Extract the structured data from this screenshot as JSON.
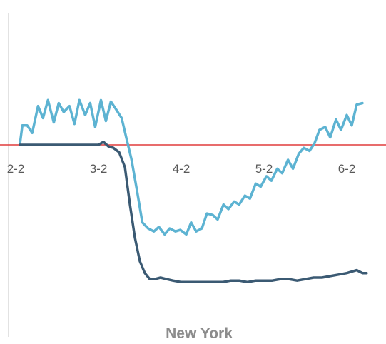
{
  "chart_data": {
    "type": "line",
    "title": "New York",
    "xlabel": "",
    "ylabel": "",
    "x_tick_labels": [
      "2-2",
      "3-2",
      "4-2",
      "5-2",
      "6-2"
    ],
    "xlim": [
      0,
      4.35
    ],
    "ylim": [
      -1.1,
      0.75
    ],
    "baseline": 0,
    "baseline_color": "#e03c3c",
    "axis_color": "#d9d9d9",
    "grid": false,
    "legend": "none",
    "series": [
      {
        "color": "#5db3d2",
        "points": [
          [
            0.05,
            0.0
          ],
          [
            0.08,
            0.13
          ],
          [
            0.14,
            0.13
          ],
          [
            0.2,
            0.08
          ],
          [
            0.27,
            0.26
          ],
          [
            0.33,
            0.18
          ],
          [
            0.39,
            0.3
          ],
          [
            0.46,
            0.15
          ],
          [
            0.52,
            0.28
          ],
          [
            0.58,
            0.22
          ],
          [
            0.65,
            0.26
          ],
          [
            0.71,
            0.14
          ],
          [
            0.77,
            0.3
          ],
          [
            0.84,
            0.2
          ],
          [
            0.9,
            0.28
          ],
          [
            0.96,
            0.12
          ],
          [
            1.03,
            0.3
          ],
          [
            1.09,
            0.16
          ],
          [
            1.15,
            0.29
          ],
          [
            1.21,
            0.24
          ],
          [
            1.28,
            0.18
          ],
          [
            1.34,
            0.04
          ],
          [
            1.4,
            -0.1
          ],
          [
            1.47,
            -0.32
          ],
          [
            1.53,
            -0.52
          ],
          [
            1.6,
            -0.56
          ],
          [
            1.67,
            -0.58
          ],
          [
            1.73,
            -0.55
          ],
          [
            1.8,
            -0.6
          ],
          [
            1.86,
            -0.56
          ],
          [
            1.93,
            -0.58
          ],
          [
            1.99,
            -0.57
          ],
          [
            2.06,
            -0.6
          ],
          [
            2.12,
            -0.52
          ],
          [
            2.18,
            -0.58
          ],
          [
            2.25,
            -0.56
          ],
          [
            2.31,
            -0.46
          ],
          [
            2.38,
            -0.47
          ],
          [
            2.44,
            -0.5
          ],
          [
            2.51,
            -0.4
          ],
          [
            2.57,
            -0.43
          ],
          [
            2.64,
            -0.38
          ],
          [
            2.7,
            -0.4
          ],
          [
            2.77,
            -0.34
          ],
          [
            2.83,
            -0.36
          ],
          [
            2.9,
            -0.26
          ],
          [
            2.96,
            -0.28
          ],
          [
            3.03,
            -0.21
          ],
          [
            3.09,
            -0.24
          ],
          [
            3.16,
            -0.16
          ],
          [
            3.22,
            -0.19
          ],
          [
            3.29,
            -0.1
          ],
          [
            3.35,
            -0.16
          ],
          [
            3.42,
            -0.06
          ],
          [
            3.48,
            -0.02
          ],
          [
            3.55,
            -0.04
          ],
          [
            3.61,
            0.01
          ],
          [
            3.67,
            0.1
          ],
          [
            3.74,
            0.12
          ],
          [
            3.8,
            0.05
          ],
          [
            3.87,
            0.17
          ],
          [
            3.93,
            0.1
          ],
          [
            4.0,
            0.2
          ],
          [
            4.06,
            0.13
          ],
          [
            4.12,
            0.27
          ],
          [
            4.19,
            0.28
          ]
        ]
      },
      {
        "color": "#3b5a73",
        "points": [
          [
            0.05,
            0.0
          ],
          [
            0.5,
            0.0
          ],
          [
            1.0,
            0.0
          ],
          [
            1.06,
            0.02
          ],
          [
            1.12,
            -0.01
          ],
          [
            1.18,
            -0.02
          ],
          [
            1.25,
            -0.05
          ],
          [
            1.32,
            -0.15
          ],
          [
            1.38,
            -0.4
          ],
          [
            1.44,
            -0.62
          ],
          [
            1.5,
            -0.78
          ],
          [
            1.56,
            -0.86
          ],
          [
            1.62,
            -0.9
          ],
          [
            1.68,
            -0.9
          ],
          [
            1.75,
            -0.89
          ],
          [
            1.82,
            -0.9
          ],
          [
            1.9,
            -0.91
          ],
          [
            2.0,
            -0.92
          ],
          [
            2.1,
            -0.92
          ],
          [
            2.2,
            -0.92
          ],
          [
            2.3,
            -0.92
          ],
          [
            2.4,
            -0.92
          ],
          [
            2.5,
            -0.92
          ],
          [
            2.6,
            -0.91
          ],
          [
            2.7,
            -0.91
          ],
          [
            2.8,
            -0.92
          ],
          [
            2.9,
            -0.91
          ],
          [
            3.0,
            -0.91
          ],
          [
            3.1,
            -0.91
          ],
          [
            3.2,
            -0.9
          ],
          [
            3.3,
            -0.9
          ],
          [
            3.4,
            -0.91
          ],
          [
            3.5,
            -0.9
          ],
          [
            3.6,
            -0.89
          ],
          [
            3.7,
            -0.89
          ],
          [
            3.8,
            -0.88
          ],
          [
            3.9,
            -0.87
          ],
          [
            4.0,
            -0.86
          ],
          [
            4.06,
            -0.85
          ],
          [
            4.12,
            -0.84
          ],
          [
            4.19,
            -0.86
          ],
          [
            4.24,
            -0.86
          ]
        ]
      }
    ]
  }
}
